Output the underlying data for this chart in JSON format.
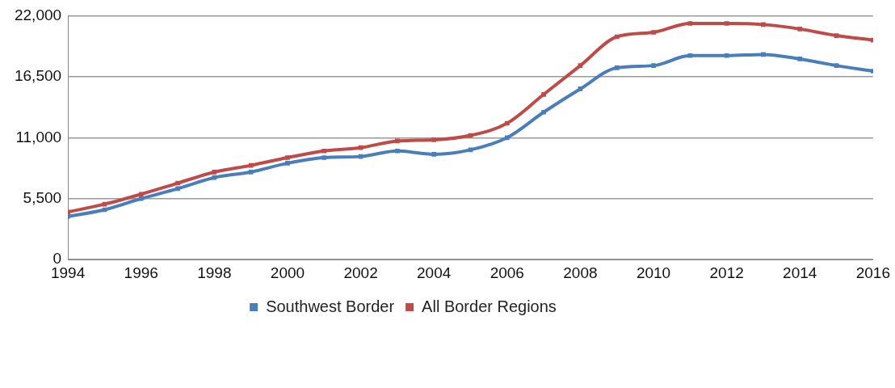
{
  "chart_data": {
    "type": "line",
    "x": [
      1994,
      1995,
      1996,
      1997,
      1998,
      1999,
      2000,
      2001,
      2002,
      2003,
      2004,
      2005,
      2006,
      2007,
      2008,
      2009,
      2010,
      2011,
      2012,
      2013,
      2014,
      2015,
      2016
    ],
    "series": [
      {
        "name": "Southwest Border",
        "color": "#4a7ebb",
        "values": [
          3900,
          4500,
          5500,
          6400,
          7400,
          7900,
          8700,
          9200,
          9300,
          9800,
          9500,
          9900,
          11000,
          13300,
          15400,
          17300,
          17500,
          18400,
          18400,
          18500,
          18100,
          17500,
          17000
        ]
      },
      {
        "name": "All Border Regions",
        "color": "#be4b48",
        "values": [
          4300,
          5000,
          5900,
          6900,
          7900,
          8500,
          9200,
          9800,
          10100,
          10700,
          10800,
          11200,
          12300,
          14900,
          17500,
          20100,
          20500,
          21300,
          21300,
          21200,
          20800,
          20200,
          19800
        ]
      }
    ],
    "xlim": [
      1994,
      2016
    ],
    "xticks": [
      1994,
      1996,
      1998,
      2000,
      2002,
      2004,
      2006,
      2008,
      2010,
      2012,
      2014,
      2016
    ],
    "ylim": [
      0,
      22000
    ],
    "yticks": [
      0,
      {
        "value": 5500,
        "label": "5,500"
      },
      {
        "value": 11000,
        "label": "11,000"
      },
      {
        "value": 16500,
        "label": "16,500"
      },
      {
        "value": 22000,
        "label": "22,000"
      }
    ],
    "grid": "y",
    "legend": "bottom",
    "marker": "square",
    "line_style": "solid"
  }
}
